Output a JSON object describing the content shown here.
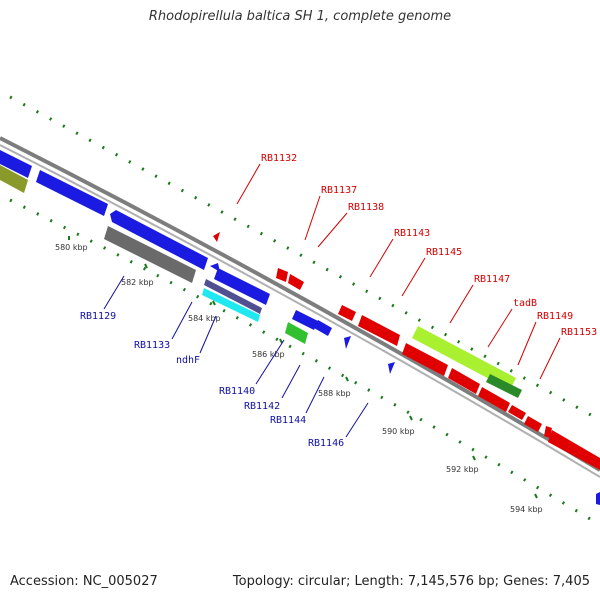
{
  "title": "Rhodopirellula baltica SH 1, complete genome",
  "footer": {
    "accession": "Accession: NC_005027",
    "summary": "Topology: circular; Length: 7,145,576 bp; Genes: 7,405"
  },
  "colors": {
    "forward": "#e00000",
    "reverse": "#1010e0",
    "backbone": "#888888",
    "tick": "#1a7a1a",
    "label_red": "#d40000",
    "label_blue": "#1010a0"
  },
  "scale_ticks": [
    "580 kbp",
    "582 kbp",
    "584 kbp",
    "586 kbp",
    "588 kbp",
    "590 kbp",
    "592 kbp",
    "594 kbp"
  ],
  "gene_labels_forward": [
    "RB1132",
    "RB1137",
    "RB1138",
    "RB1143",
    "RB1145",
    "RB1147",
    "tadB",
    "RB1149",
    "RB1153"
  ],
  "gene_labels_reverse": [
    "RB1129",
    "RB1133",
    "ndhF",
    "RB1140",
    "RB1142",
    "RB1144",
    "RB1146"
  ]
}
